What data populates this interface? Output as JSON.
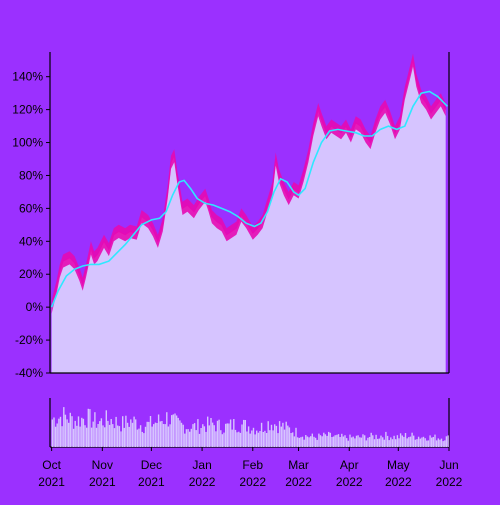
{
  "chart_data": {
    "type": "area",
    "title": "",
    "xlabel": "",
    "ylabel": "",
    "grid": false,
    "colors": {
      "background": "#9b30ff",
      "area_fill": "#d6c4ff",
      "band": "#e60ab4",
      "moving_average": "#2fe8ff",
      "volume_bar": "#d6c4ff",
      "axis": "#000000"
    },
    "x_range": [
      "2021-09-30",
      "2022-06-01"
    ],
    "ylim": [
      -40,
      155
    ],
    "yticks": [
      -40,
      -20,
      0,
      20,
      40,
      60,
      80,
      100,
      120,
      140
    ],
    "ytick_labels": [
      "-40%",
      "-20%",
      "0%",
      "20%",
      "40%",
      "60%",
      "80%",
      "100%",
      "120%",
      "140%"
    ],
    "xticks": [
      {
        "date": "2021-10-01",
        "label": "Oct",
        "year": "2021"
      },
      {
        "date": "2021-11-01",
        "label": "Nov",
        "year": "2021"
      },
      {
        "date": "2021-12-01",
        "label": "Dec",
        "year": "2021"
      },
      {
        "date": "2022-01-01",
        "label": "Jan",
        "year": "2022"
      },
      {
        "date": "2022-02-01",
        "label": "Feb",
        "year": "2022"
      },
      {
        "date": "2022-03-01",
        "label": "Mar",
        "year": "2022"
      },
      {
        "date": "2022-04-01",
        "label": "Apr",
        "year": "2022"
      },
      {
        "date": "2022-05-01",
        "label": "May",
        "year": "2022"
      },
      {
        "date": "2022-06-01",
        "label": "Jun",
        "year": "2022"
      }
    ],
    "series": [
      {
        "kind": "cumulative_return",
        "unit": "%",
        "points": [
          [
            "2021-10-01",
            0
          ],
          [
            "2021-10-04",
            12
          ],
          [
            "2021-10-06",
            22
          ],
          [
            "2021-10-08",
            28
          ],
          [
            "2021-10-12",
            30
          ],
          [
            "2021-10-15",
            27
          ],
          [
            "2021-10-18",
            20
          ],
          [
            "2021-10-20",
            14
          ],
          [
            "2021-10-22",
            22
          ],
          [
            "2021-10-25",
            36
          ],
          [
            "2021-10-27",
            30
          ],
          [
            "2021-10-29",
            32
          ],
          [
            "2021-11-02",
            40
          ],
          [
            "2021-11-05",
            35
          ],
          [
            "2021-11-08",
            44
          ],
          [
            "2021-11-11",
            46
          ],
          [
            "2021-11-15",
            44
          ],
          [
            "2021-11-18",
            46
          ],
          [
            "2021-11-22",
            45
          ],
          [
            "2021-11-25",
            55
          ],
          [
            "2021-11-29",
            52
          ],
          [
            "2021-12-02",
            47
          ],
          [
            "2021-12-05",
            40
          ],
          [
            "2021-12-08",
            50
          ],
          [
            "2021-12-11",
            70
          ],
          [
            "2021-12-13",
            88
          ],
          [
            "2021-12-15",
            92
          ],
          [
            "2021-12-17",
            78
          ],
          [
            "2021-12-20",
            60
          ],
          [
            "2021-12-23",
            62
          ],
          [
            "2021-12-27",
            58
          ],
          [
            "2021-12-30",
            63
          ],
          [
            "2022-01-03",
            68
          ],
          [
            "2022-01-05",
            62
          ],
          [
            "2022-01-07",
            55
          ],
          [
            "2022-01-10",
            52
          ],
          [
            "2022-01-13",
            50
          ],
          [
            "2022-01-16",
            44
          ],
          [
            "2022-01-19",
            46
          ],
          [
            "2022-01-22",
            48
          ],
          [
            "2022-01-25",
            56
          ],
          [
            "2022-01-28",
            52
          ],
          [
            "2022-02-01",
            45
          ],
          [
            "2022-02-04",
            48
          ],
          [
            "2022-02-07",
            52
          ],
          [
            "2022-02-10",
            62
          ],
          [
            "2022-02-13",
            72
          ],
          [
            "2022-02-15",
            90
          ],
          [
            "2022-02-17",
            80
          ],
          [
            "2022-02-20",
            72
          ],
          [
            "2022-02-23",
            66
          ],
          [
            "2022-02-26",
            72
          ],
          [
            "2022-03-01",
            70
          ],
          [
            "2022-03-04",
            80
          ],
          [
            "2022-03-07",
            92
          ],
          [
            "2022-03-10",
            108
          ],
          [
            "2022-03-13",
            120
          ],
          [
            "2022-03-15",
            114
          ],
          [
            "2022-03-18",
            106
          ],
          [
            "2022-03-21",
            110
          ],
          [
            "2022-03-24",
            108
          ],
          [
            "2022-03-27",
            106
          ],
          [
            "2022-03-30",
            110
          ],
          [
            "2022-04-02",
            104
          ],
          [
            "2022-04-05",
            112
          ],
          [
            "2022-04-08",
            110
          ],
          [
            "2022-04-11",
            104
          ],
          [
            "2022-04-14",
            100
          ],
          [
            "2022-04-17",
            110
          ],
          [
            "2022-04-20",
            118
          ],
          [
            "2022-04-23",
            122
          ],
          [
            "2022-04-26",
            115
          ],
          [
            "2022-04-29",
            106
          ],
          [
            "2022-05-02",
            112
          ],
          [
            "2022-05-05",
            130
          ],
          [
            "2022-05-08",
            142
          ],
          [
            "2022-05-10",
            150
          ],
          [
            "2022-05-12",
            138
          ],
          [
            "2022-05-15",
            128
          ],
          [
            "2022-05-18",
            124
          ],
          [
            "2022-05-21",
            118
          ],
          [
            "2022-05-24",
            122
          ],
          [
            "2022-05-27",
            126
          ],
          [
            "2022-05-30",
            120
          ]
        ]
      },
      {
        "kind": "moving_average",
        "unit": "%",
        "points": [
          [
            "2021-10-01",
            0
          ],
          [
            "2021-10-05",
            10
          ],
          [
            "2021-10-10",
            19
          ],
          [
            "2021-10-15",
            23
          ],
          [
            "2021-10-20",
            25
          ],
          [
            "2021-10-25",
            26
          ],
          [
            "2021-10-30",
            26
          ],
          [
            "2021-11-05",
            28
          ],
          [
            "2021-11-10",
            33
          ],
          [
            "2021-11-15",
            38
          ],
          [
            "2021-11-20",
            44
          ],
          [
            "2021-11-25",
            50
          ],
          [
            "2021-12-01",
            53
          ],
          [
            "2021-12-06",
            54
          ],
          [
            "2021-12-10",
            58
          ],
          [
            "2021-12-14",
            68
          ],
          [
            "2021-12-18",
            76
          ],
          [
            "2021-12-21",
            77
          ],
          [
            "2021-12-25",
            72
          ],
          [
            "2021-12-29",
            66
          ],
          [
            "2022-01-03",
            63
          ],
          [
            "2022-01-08",
            62
          ],
          [
            "2022-01-13",
            60
          ],
          [
            "2022-01-18",
            58
          ],
          [
            "2022-01-23",
            55
          ],
          [
            "2022-01-28",
            51
          ],
          [
            "2022-02-02",
            49
          ],
          [
            "2022-02-06",
            51
          ],
          [
            "2022-02-10",
            58
          ],
          [
            "2022-02-14",
            70
          ],
          [
            "2022-02-18",
            78
          ],
          [
            "2022-02-22",
            76
          ],
          [
            "2022-02-26",
            70
          ],
          [
            "2022-03-01",
            68
          ],
          [
            "2022-03-05",
            72
          ],
          [
            "2022-03-10",
            88
          ],
          [
            "2022-03-15",
            100
          ],
          [
            "2022-03-20",
            107
          ],
          [
            "2022-03-25",
            108
          ],
          [
            "2022-03-30",
            107
          ],
          [
            "2022-04-05",
            106
          ],
          [
            "2022-04-10",
            104
          ],
          [
            "2022-04-15",
            104
          ],
          [
            "2022-04-20",
            108
          ],
          [
            "2022-04-25",
            110
          ],
          [
            "2022-04-30",
            108
          ],
          [
            "2022-05-05",
            110
          ],
          [
            "2022-05-10",
            122
          ],
          [
            "2022-05-15",
            130
          ],
          [
            "2022-05-20",
            131
          ],
          [
            "2022-05-25",
            128
          ],
          [
            "2022-05-31",
            122
          ]
        ]
      }
    ],
    "band_width_pct": 4,
    "volume_note": "relative bar heights, 0-1",
    "volume": [
      [
        "2021-10-01",
        0.85
      ],
      [
        "2021-10-08",
        0.95
      ],
      [
        "2021-10-15",
        0.8
      ],
      [
        "2021-10-22",
        0.9
      ],
      [
        "2021-10-29",
        0.75
      ],
      [
        "2021-11-05",
        0.85
      ],
      [
        "2021-11-12",
        0.7
      ],
      [
        "2021-11-19",
        0.8
      ],
      [
        "2021-11-26",
        0.65
      ],
      [
        "2021-12-03",
        0.75
      ],
      [
        "2021-12-10",
        0.9
      ],
      [
        "2021-12-17",
        0.7
      ],
      [
        "2021-12-24",
        0.6
      ],
      [
        "2021-12-31",
        0.65
      ],
      [
        "2022-01-07",
        0.7
      ],
      [
        "2022-01-14",
        0.6
      ],
      [
        "2022-01-21",
        0.7
      ],
      [
        "2022-01-28",
        0.65
      ],
      [
        "2022-02-04",
        0.55
      ],
      [
        "2022-02-11",
        0.75
      ],
      [
        "2022-02-18",
        0.65
      ],
      [
        "2022-02-25",
        0.5
      ],
      [
        "2022-03-04",
        0.35
      ],
      [
        "2022-03-11",
        0.3
      ],
      [
        "2022-03-18",
        0.35
      ],
      [
        "2022-03-25",
        0.3
      ],
      [
        "2022-04-01",
        0.28
      ],
      [
        "2022-04-08",
        0.3
      ],
      [
        "2022-04-15",
        0.32
      ],
      [
        "2022-04-22",
        0.35
      ],
      [
        "2022-04-29",
        0.3
      ],
      [
        "2022-05-06",
        0.35
      ],
      [
        "2022-05-13",
        0.32
      ],
      [
        "2022-05-20",
        0.3
      ],
      [
        "2022-05-27",
        0.28
      ]
    ]
  }
}
